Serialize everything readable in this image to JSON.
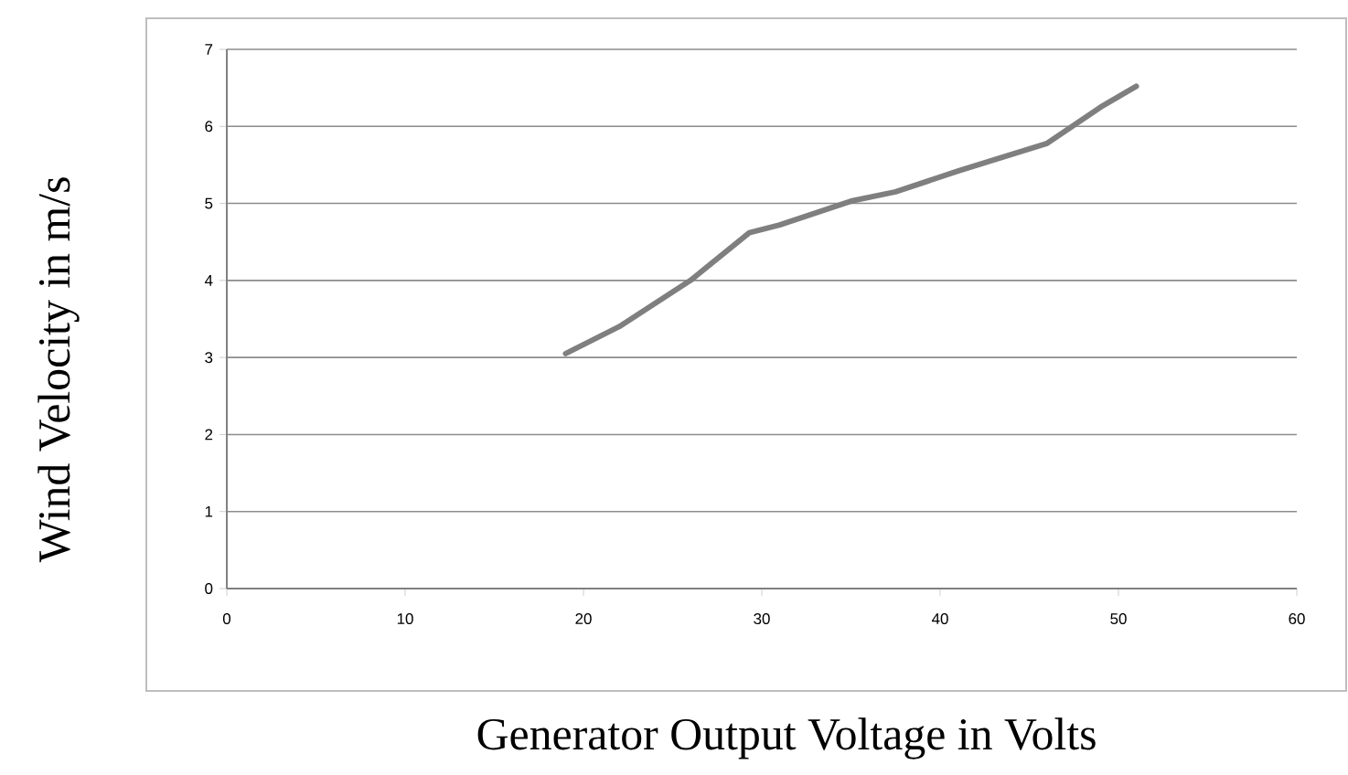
{
  "chart_data": {
    "type": "line",
    "xlabel": "Generator Output Voltage in Volts",
    "ylabel": "Wind Velocity in m/s",
    "x": [
      19,
      22,
      26,
      29.3,
      31,
      35,
      37.5,
      41,
      46,
      49,
      51
    ],
    "series": [
      {
        "color": "#7f7f7f",
        "values": [
          3.05,
          3.4,
          4.0,
          4.62,
          4.72,
          5.03,
          5.15,
          5.42,
          5.78,
          6.25,
          6.52
        ]
      }
    ],
    "xlim": [
      0,
      60
    ],
    "ylim": [
      0,
      7
    ],
    "xticks": [
      0,
      10,
      20,
      30,
      40,
      50,
      60
    ],
    "yticks": [
      0,
      1,
      2,
      3,
      4,
      5,
      6,
      7
    ],
    "grid": "y",
    "marker": "none",
    "line_style": "solid"
  }
}
